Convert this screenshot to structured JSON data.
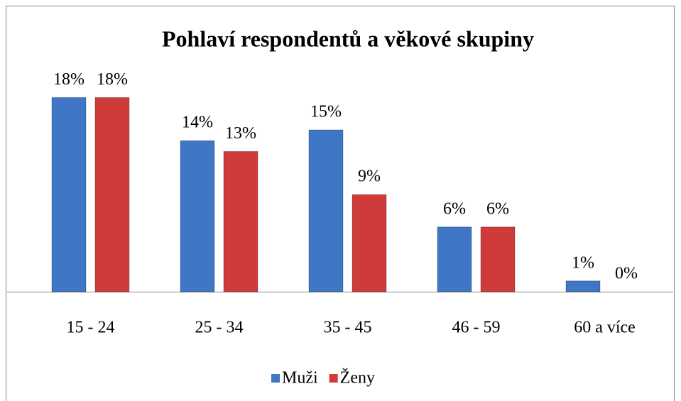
{
  "chart_data": {
    "type": "bar",
    "title": "Pohlaví respondentů a věkové skupiny",
    "categories": [
      "15 - 24",
      "25 - 34",
      "35 - 45",
      "46 - 59",
      "60 a více"
    ],
    "series": [
      {
        "name": "Muži",
        "color": "#3f76c6",
        "values": [
          18,
          14,
          15,
          6,
          1
        ],
        "value_labels": [
          "18%",
          "14%",
          "15%",
          "6%",
          "1%"
        ]
      },
      {
        "name": "Ženy",
        "color": "#cf3b3b",
        "values": [
          18,
          13,
          9,
          6,
          0
        ],
        "value_labels": [
          "18%",
          "13%",
          "9%",
          "6%",
          "0%"
        ]
      }
    ],
    "legend": "bottom"
  }
}
